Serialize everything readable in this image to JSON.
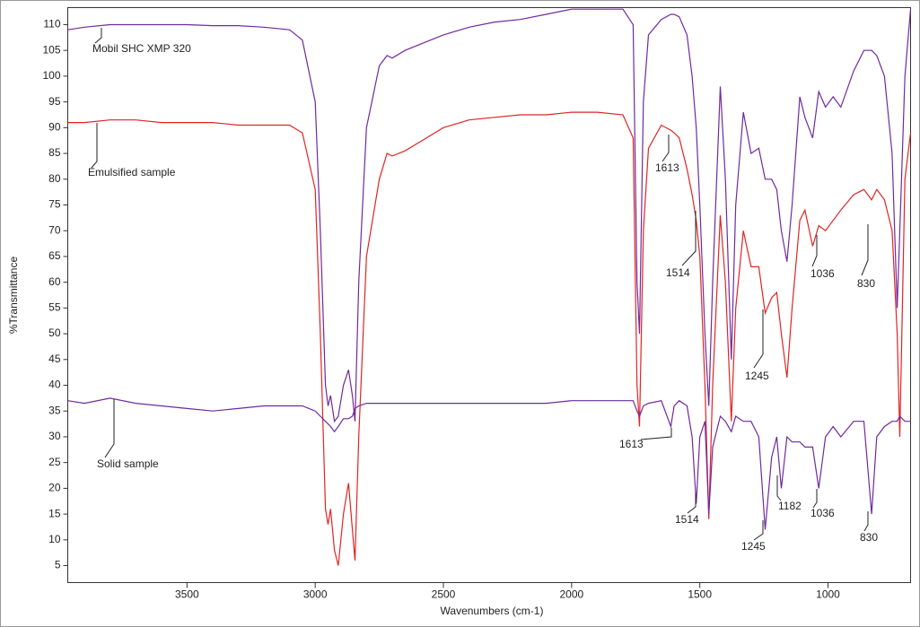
{
  "chart_data": {
    "type": "line",
    "x_label": "Wavenumbers (cm-1)",
    "y_label": "%Transmittance",
    "xlim": [
      3965,
      678
    ],
    "ylim": [
      1.7,
      113.3
    ],
    "xticks": [
      3500,
      3000,
      2500,
      2000,
      1500,
      1000
    ],
    "yticks": [
      5,
      10,
      15,
      20,
      25,
      30,
      35,
      40,
      45,
      50,
      55,
      60,
      65,
      70,
      75,
      80,
      85,
      90,
      95,
      100,
      105,
      110
    ],
    "x": [
      3965,
      3900,
      3800,
      3700,
      3600,
      3500,
      3400,
      3300,
      3200,
      3100,
      3050,
      3000,
      2980,
      2960,
      2950,
      2940,
      2925,
      2910,
      2890,
      2870,
      2855,
      2845,
      2830,
      2800,
      2750,
      2720,
      2700,
      2650,
      2600,
      2500,
      2400,
      2300,
      2200,
      2100,
      2000,
      1900,
      1800,
      1760,
      1745,
      1735,
      1720,
      1700,
      1650,
      1613,
      1600,
      1580,
      1550,
      1530,
      1514,
      1500,
      1480,
      1465,
      1450,
      1420,
      1400,
      1377,
      1360,
      1330,
      1300,
      1270,
      1245,
      1220,
      1200,
      1182,
      1160,
      1140,
      1110,
      1090,
      1060,
      1036,
      1010,
      980,
      950,
      900,
      860,
      830,
      810,
      780,
      750,
      730,
      720,
      700,
      678
    ],
    "series": [
      {
        "name": "Mobil SHC XMP 320",
        "color": "#6f2a9e",
        "values": [
          109,
          109.5,
          110,
          110,
          110,
          110,
          109.8,
          109.8,
          109.5,
          109,
          107,
          95,
          70,
          40,
          36,
          38,
          33,
          34,
          40,
          43,
          38,
          33,
          60,
          90,
          102,
          104,
          103.5,
          105,
          106,
          108,
          109.5,
          110.5,
          111,
          112,
          113,
          113,
          113,
          110,
          60,
          50,
          95,
          108,
          111,
          112,
          112,
          111.5,
          108,
          100,
          90,
          75,
          50,
          36,
          60,
          98,
          80,
          45,
          75,
          93,
          85,
          86,
          80,
          80,
          78,
          70,
          64,
          75,
          96,
          92,
          88,
          97,
          94,
          96,
          94,
          101,
          105,
          105,
          104,
          100,
          85,
          55,
          70,
          100,
          113
        ]
      },
      {
        "name": "Emulsified sample",
        "color": "#e02424",
        "values": [
          91,
          91,
          91.5,
          91.5,
          91,
          91,
          91,
          90.5,
          90.5,
          90.5,
          89,
          78,
          50,
          16,
          13,
          16,
          8,
          5,
          15,
          21,
          12,
          6,
          30,
          65,
          80,
          85,
          84.5,
          85.5,
          87,
          90,
          91.5,
          92,
          92.5,
          92.5,
          93,
          93,
          92.5,
          88,
          40,
          32,
          70,
          86,
          90.5,
          89.5,
          89,
          88,
          82,
          77,
          72,
          65,
          40,
          14,
          40,
          73,
          60,
          33,
          55,
          70,
          63,
          63,
          54,
          57,
          58,
          50,
          41.5,
          55,
          72,
          74,
          67,
          71,
          70,
          72,
          74,
          77,
          78,
          76,
          78,
          76,
          70,
          50,
          30,
          80,
          89
        ]
      },
      {
        "name": "Solid sample",
        "color": "#6f2a9e",
        "values": [
          37,
          36.5,
          37.5,
          36.5,
          36,
          35.5,
          35,
          35.5,
          36,
          36,
          36,
          35,
          34,
          33,
          32.5,
          32,
          31,
          32,
          33.5,
          33.5,
          34,
          35.5,
          36,
          36.5,
          36.5,
          36.5,
          36.5,
          36.5,
          36.5,
          36.5,
          36.5,
          36.5,
          36.5,
          36.5,
          37,
          37,
          37,
          37,
          35,
          34,
          36,
          36.5,
          37,
          32,
          36,
          37,
          36,
          30,
          17,
          30,
          33,
          15,
          28,
          34,
          33,
          31,
          34,
          33,
          33,
          30,
          12,
          26,
          30,
          20,
          30,
          29,
          29,
          28,
          28,
          20,
          30,
          32,
          30,
          33,
          33,
          15,
          30,
          32,
          33,
          33,
          34,
          33,
          33
        ]
      }
    ],
    "annotations": [
      "1613",
      "1514",
      "1245",
      "1036",
      "830",
      "1613",
      "1514",
      "1245",
      "1182",
      "1036",
      "830"
    ]
  }
}
